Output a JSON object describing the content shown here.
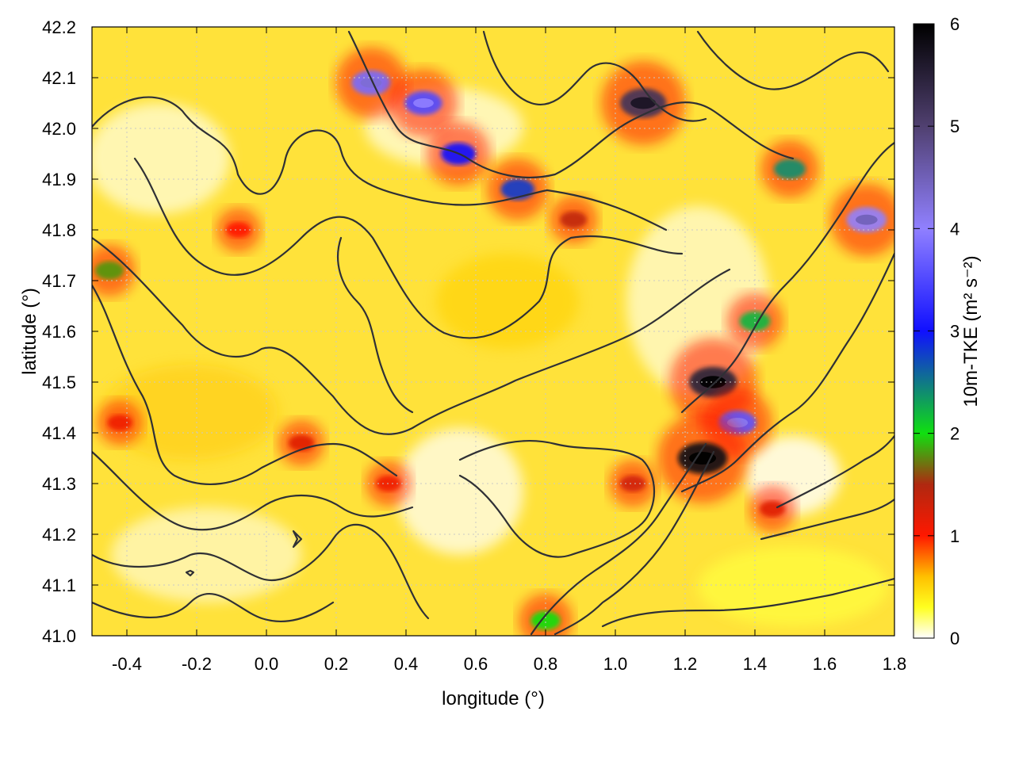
{
  "chart_data": {
    "type": "heatmap",
    "xlabel": "longitude (°)",
    "ylabel": "latitude (°)",
    "colorbar_label": "10m-TKE (m² s⁻²)",
    "xlim": [
      -0.5,
      1.8
    ],
    "ylim": [
      41.0,
      42.2
    ],
    "xticks": [
      -0.4,
      -0.2,
      0.0,
      0.2,
      0.4,
      0.6,
      0.8,
      1.0,
      1.2,
      1.4,
      1.6,
      1.8
    ],
    "xtick_labels": [
      "-0.4",
      "-0.2",
      "0.0",
      "0.2",
      "0.4",
      "0.6",
      "0.8",
      "1.0",
      "1.2",
      "1.4",
      "1.6",
      "1.8"
    ],
    "yticks": [
      41.0,
      41.1,
      41.2,
      41.3,
      41.4,
      41.5,
      41.6,
      41.7,
      41.8,
      41.9,
      42.0,
      42.1,
      42.2
    ],
    "ytick_labels": [
      "41.0",
      "41.1",
      "41.2",
      "41.3",
      "41.4",
      "41.5",
      "41.6",
      "41.7",
      "41.8",
      "41.9",
      "42.0",
      "42.1",
      "42.2"
    ],
    "colorbar_range": [
      0,
      6
    ],
    "colorbar_ticks": [
      0,
      1,
      2,
      3,
      4,
      5,
      6
    ],
    "colorbar_tick_labels": [
      "0",
      "1",
      "2",
      "3",
      "4",
      "5",
      "6"
    ],
    "colormap": [
      {
        "value": 0.0,
        "color": "#ffffff"
      },
      {
        "value": 0.3,
        "color": "#ffff20"
      },
      {
        "value": 0.6,
        "color": "#ffc000"
      },
      {
        "value": 1.0,
        "color": "#ff1800"
      },
      {
        "value": 1.5,
        "color": "#b02810"
      },
      {
        "value": 2.0,
        "color": "#10e010"
      },
      {
        "value": 3.0,
        "color": "#1010ff"
      },
      {
        "value": 4.0,
        "color": "#9080ff"
      },
      {
        "value": 5.0,
        "color": "#504070"
      },
      {
        "value": 6.0,
        "color": "#000000"
      }
    ],
    "grid": true,
    "hotspots": [
      {
        "lon": -0.42,
        "lat": 41.42,
        "tke": 1.1
      },
      {
        "lon": -0.45,
        "lat": 41.72,
        "tke": 1.8
      },
      {
        "lon": -0.08,
        "lat": 41.8,
        "tke": 1.0
      },
      {
        "lon": 0.1,
        "lat": 41.38,
        "tke": 1.2
      },
      {
        "lon": 0.3,
        "lat": 42.09,
        "tke": 3.8
      },
      {
        "lon": 0.45,
        "lat": 42.05,
        "tke": 3.5
      },
      {
        "lon": 0.55,
        "lat": 41.95,
        "tke": 3.0
      },
      {
        "lon": 0.72,
        "lat": 41.88,
        "tke": 2.8
      },
      {
        "lon": 0.88,
        "lat": 41.82,
        "tke": 1.4
      },
      {
        "lon": 1.08,
        "lat": 42.05,
        "tke": 5.2
      },
      {
        "lon": 1.5,
        "lat": 41.92,
        "tke": 2.4
      },
      {
        "lon": 1.72,
        "lat": 41.82,
        "tke": 4.0
      },
      {
        "lon": 1.4,
        "lat": 41.62,
        "tke": 2.2
      },
      {
        "lon": 1.28,
        "lat": 41.5,
        "tke": 5.5
      },
      {
        "lon": 1.35,
        "lat": 41.42,
        "tke": 3.6
      },
      {
        "lon": 1.25,
        "lat": 41.35,
        "tke": 5.8
      },
      {
        "lon": 1.05,
        "lat": 41.3,
        "tke": 1.3
      },
      {
        "lon": 0.8,
        "lat": 41.03,
        "tke": 2.0
      },
      {
        "lon": 0.35,
        "lat": 41.3,
        "tke": 1.1
      },
      {
        "lon": 1.45,
        "lat": 41.25,
        "tke": 1.2
      }
    ]
  }
}
